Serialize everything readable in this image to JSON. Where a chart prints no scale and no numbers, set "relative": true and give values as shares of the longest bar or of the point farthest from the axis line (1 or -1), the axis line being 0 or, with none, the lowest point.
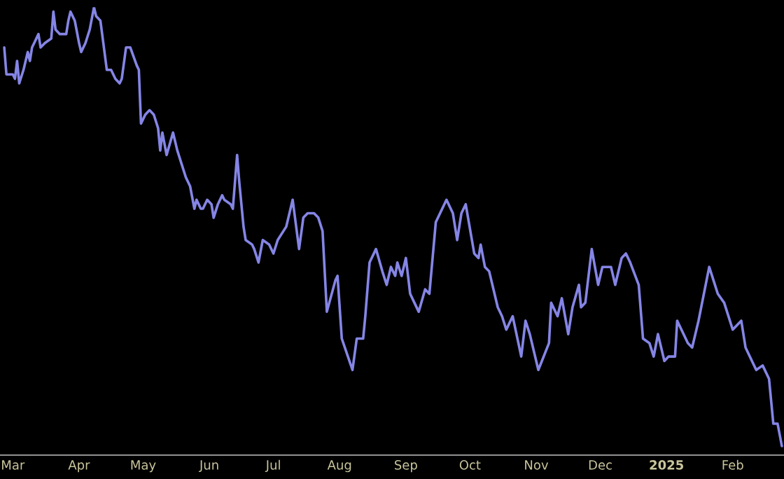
{
  "chart_data": {
    "type": "line",
    "relative": true,
    "x": [
      "2024-02-26",
      "2024-02-27",
      "2024-03-01",
      "2024-03-02",
      "2024-03-03",
      "2024-03-04",
      "2024-03-06",
      "2024-03-08",
      "2024-03-09",
      "2024-03-10",
      "2024-03-11",
      "2024-03-13",
      "2024-03-14",
      "2024-03-16",
      "2024-03-19",
      "2024-03-20",
      "2024-03-21",
      "2024-03-23",
      "2024-03-26",
      "2024-03-27",
      "2024-03-28",
      "2024-03-30",
      "2024-04-01",
      "2024-04-02",
      "2024-04-04",
      "2024-04-06",
      "2024-04-08",
      "2024-04-09",
      "2024-04-11",
      "2024-04-14",
      "2024-04-16",
      "2024-04-18",
      "2024-04-20",
      "2024-04-21",
      "2024-04-23",
      "2024-04-25",
      "2024-04-28",
      "2024-04-29",
      "2024-04-30",
      "2024-05-02",
      "2024-05-04",
      "2024-05-06",
      "2024-05-08",
      "2024-05-09",
      "2024-05-10",
      "2024-05-12",
      "2024-05-15",
      "2024-05-17",
      "2024-05-19",
      "2024-05-21",
      "2024-05-23",
      "2024-05-25",
      "2024-05-26",
      "2024-05-28",
      "2024-05-29",
      "2024-05-31",
      "2024-06-02",
      "2024-06-03",
      "2024-06-05",
      "2024-06-07",
      "2024-06-08",
      "2024-06-11",
      "2024-06-12",
      "2024-06-13",
      "2024-06-14",
      "2024-06-15",
      "2024-06-17",
      "2024-06-18",
      "2024-06-21",
      "2024-06-22",
      "2024-06-24",
      "2024-06-26",
      "2024-06-29",
      "2024-07-01",
      "2024-07-03",
      "2024-07-07",
      "2024-07-10",
      "2024-07-13",
      "2024-07-15",
      "2024-07-17",
      "2024-07-20",
      "2024-07-22",
      "2024-07-24",
      "2024-07-26",
      "2024-07-30",
      "2024-07-31",
      "2024-08-02",
      "2024-08-07",
      "2024-08-09",
      "2024-08-12",
      "2024-08-13",
      "2024-08-15",
      "2024-08-18",
      "2024-08-21",
      "2024-08-23",
      "2024-08-25",
      "2024-08-27",
      "2024-08-28",
      "2024-08-30",
      "2024-09-01",
      "2024-09-03",
      "2024-09-05",
      "2024-09-07",
      "2024-09-10",
      "2024-09-12",
      "2024-09-15",
      "2024-09-17",
      "2024-09-20",
      "2024-09-23",
      "2024-09-25",
      "2024-09-27",
      "2024-09-29",
      "2024-10-03",
      "2024-10-05",
      "2024-10-06",
      "2024-10-08",
      "2024-10-10",
      "2024-10-14",
      "2024-10-16",
      "2024-10-18",
      "2024-10-21",
      "2024-10-25",
      "2024-10-27",
      "2024-10-29",
      "2024-11-02",
      "2024-11-07",
      "2024-11-08",
      "2024-11-11",
      "2024-11-13",
      "2024-11-16",
      "2024-11-18",
      "2024-11-21",
      "2024-11-22",
      "2024-11-24",
      "2024-11-27",
      "2024-11-30",
      "2024-12-02",
      "2024-12-06",
      "2024-12-08",
      "2024-12-11",
      "2024-12-13",
      "2024-12-15",
      "2024-12-19",
      "2024-12-21",
      "2024-12-24",
      "2024-12-26",
      "2024-12-28",
      "2024-12-31",
      "2025-01-02",
      "2025-01-05",
      "2025-01-06",
      "2025-01-11",
      "2025-01-13",
      "2025-01-16",
      "2025-01-21",
      "2025-01-25",
      "2025-01-28",
      "2025-02-01",
      "2025-02-05",
      "2025-02-07",
      "2025-02-12",
      "2025-02-15",
      "2025-02-18",
      "2025-02-20",
      "2025-02-22",
      "2025-02-24"
    ],
    "series": [
      {
        "color": "#8585e6",
        "values": [
          0.91,
          0.85,
          0.85,
          0.84,
          0.88,
          0.83,
          0.86,
          0.9,
          0.88,
          0.91,
          0.92,
          0.94,
          0.91,
          0.92,
          0.93,
          0.99,
          0.95,
          0.94,
          0.94,
          0.97,
          0.99,
          0.97,
          0.92,
          0.9,
          0.92,
          0.95,
          1.0,
          0.98,
          0.97,
          0.86,
          0.86,
          0.84,
          0.83,
          0.84,
          0.91,
          0.91,
          0.87,
          0.86,
          0.74,
          0.76,
          0.77,
          0.76,
          0.73,
          0.68,
          0.72,
          0.67,
          0.72,
          0.68,
          0.65,
          0.62,
          0.6,
          0.55,
          0.57,
          0.55,
          0.55,
          0.57,
          0.56,
          0.53,
          0.56,
          0.58,
          0.57,
          0.56,
          0.55,
          0.61,
          0.67,
          0.61,
          0.51,
          0.48,
          0.47,
          0.46,
          0.43,
          0.48,
          0.47,
          0.45,
          0.48,
          0.51,
          0.57,
          0.46,
          0.53,
          0.54,
          0.54,
          0.53,
          0.5,
          0.32,
          0.39,
          0.4,
          0.26,
          0.19,
          0.26,
          0.26,
          0.31,
          0.43,
          0.46,
          0.41,
          0.38,
          0.42,
          0.4,
          0.43,
          0.4,
          0.44,
          0.36,
          0.34,
          0.32,
          0.37,
          0.36,
          0.52,
          0.54,
          0.57,
          0.54,
          0.48,
          0.54,
          0.56,
          0.45,
          0.44,
          0.47,
          0.42,
          0.41,
          0.33,
          0.31,
          0.28,
          0.31,
          0.22,
          0.3,
          0.27,
          0.19,
          0.25,
          0.34,
          0.31,
          0.35,
          0.27,
          0.33,
          0.38,
          0.33,
          0.34,
          0.46,
          0.38,
          0.42,
          0.42,
          0.38,
          0.44,
          0.45,
          0.43,
          0.38,
          0.26,
          0.25,
          0.22,
          0.27,
          0.21,
          0.22,
          0.22,
          0.3,
          0.25,
          0.24,
          0.3,
          0.42,
          0.36,
          0.34,
          0.28,
          0.3,
          0.24,
          0.19,
          0.2,
          0.17,
          0.07,
          0.07,
          0.02
        ]
      }
    ],
    "xlim": [
      "2024-02-24",
      "2025-02-25"
    ],
    "xticks": [
      {
        "value": "2024-03-01",
        "label": "Mar"
      },
      {
        "value": "2024-04-01",
        "label": "Apr"
      },
      {
        "value": "2024-05-01",
        "label": "May"
      },
      {
        "value": "2024-06-01",
        "label": "Jun"
      },
      {
        "value": "2024-07-01",
        "label": "Jul"
      },
      {
        "value": "2024-08-01",
        "label": "Aug"
      },
      {
        "value": "2024-09-01",
        "label": "Sep"
      },
      {
        "value": "2024-10-01",
        "label": "Oct"
      },
      {
        "value": "2024-11-01",
        "label": "Nov"
      },
      {
        "value": "2024-12-01",
        "label": "Dec"
      },
      {
        "value": "2025-01-01",
        "label": "2025"
      },
      {
        "value": "2025-02-01",
        "label": "Feb"
      }
    ],
    "grid": false,
    "legend": false,
    "marker": "none",
    "line_style": "solid"
  }
}
